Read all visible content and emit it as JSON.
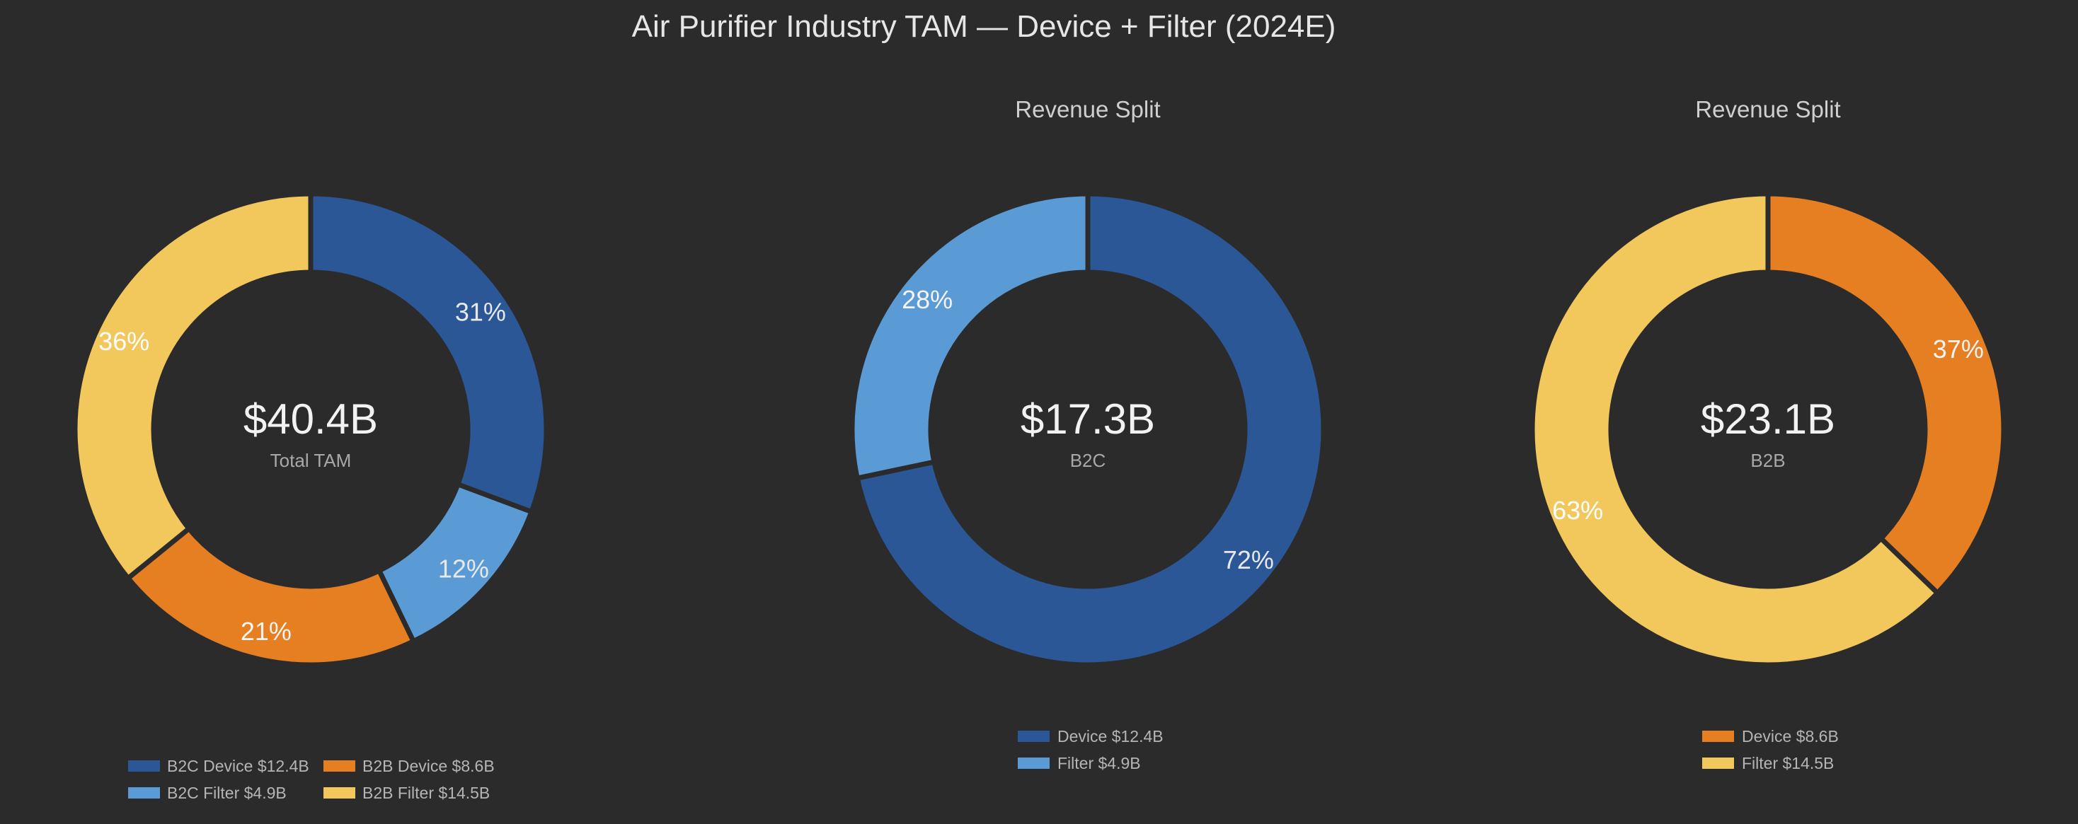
{
  "title": "Air Purifier Industry TAM — Device + Filter (2024E)",
  "chart_data": [
    {
      "type": "pie",
      "style": "donut",
      "title": "",
      "center": {
        "value": "$40.4B",
        "label": "Total TAM"
      },
      "slices": [
        {
          "name": "B2C Device",
          "value": 12.4,
          "pct_label": "31%",
          "color": "#2b5797",
          "label_color": "#e8e8e8",
          "legend": "B2C Device  $12.4B"
        },
        {
          "name": "B2C Filter",
          "value": 4.9,
          "pct_label": "12%",
          "color": "#5b9bd5",
          "label_color": "#e8e8e8",
          "legend": "B2C Filter  $4.9B"
        },
        {
          "name": "B2B Device",
          "value": 8.6,
          "pct_label": "21%",
          "color": "#e67e22",
          "label_color": "#f4f4f4",
          "legend": "B2B Device  $8.6B"
        },
        {
          "name": "B2B Filter",
          "value": 14.5,
          "pct_label": "36%",
          "color": "#f2c75c",
          "label_color": "#ffffff",
          "legend": "B2B Filter  $14.5B"
        }
      ],
      "legend_layout": "two-column bottom"
    },
    {
      "type": "pie",
      "style": "donut",
      "title": "Revenue Split",
      "center": {
        "value": "$17.3B",
        "label": "B2C"
      },
      "slices": [
        {
          "name": "Device",
          "value": 12.4,
          "pct_label": "72%",
          "color": "#2b5797",
          "label_color": "#e8e8e8",
          "legend": "Device $12.4B"
        },
        {
          "name": "Filter",
          "value": 4.9,
          "pct_label": "28%",
          "color": "#5b9bd5",
          "label_color": "#f4f4f4",
          "legend": "Filter $4.9B"
        }
      ],
      "legend_layout": "stacked bottom"
    },
    {
      "type": "pie",
      "style": "donut",
      "title": "Revenue Split",
      "center": {
        "value": "$23.1B",
        "label": "B2B"
      },
      "slices": [
        {
          "name": "Device",
          "value": 8.6,
          "pct_label": "37%",
          "color": "#e67e22",
          "label_color": "#f4f4f4",
          "legend": "Device $8.6B"
        },
        {
          "name": "Filter",
          "value": 14.5,
          "pct_label": "63%",
          "color": "#f2c75c",
          "label_color": "#ffffff",
          "legend": "Filter $14.5B"
        }
      ],
      "legend_layout": "stacked bottom"
    }
  ]
}
